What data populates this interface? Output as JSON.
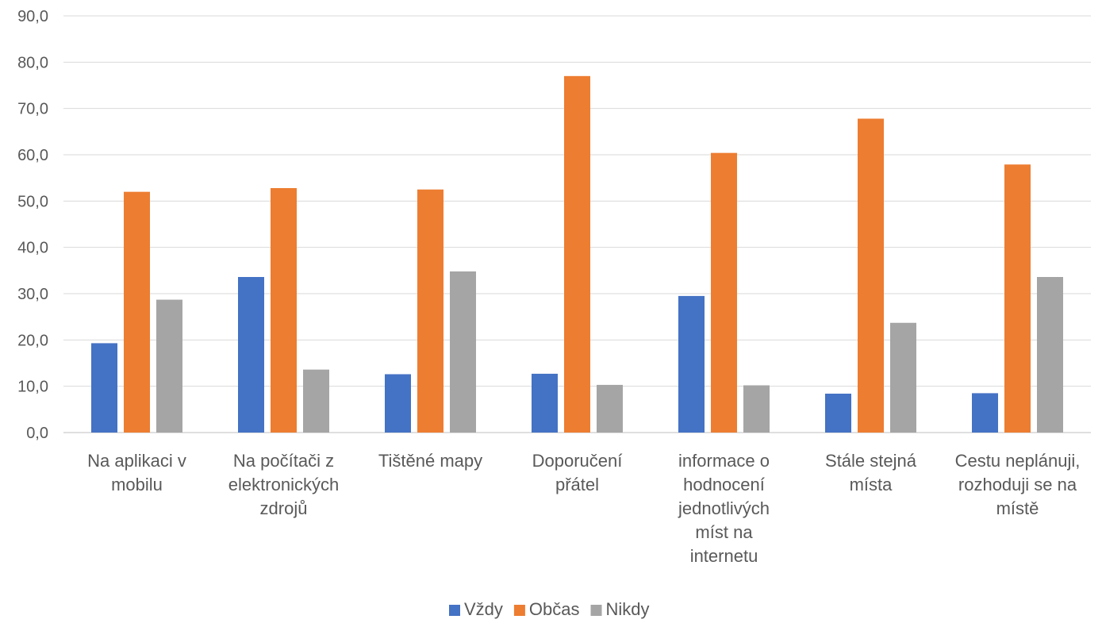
{
  "chart_data": {
    "type": "bar",
    "title": "",
    "xlabel": "",
    "ylabel": "",
    "ylim": [
      0,
      90
    ],
    "yticks": [
      "0,0",
      "10,0",
      "20,0",
      "30,0",
      "40,0",
      "50,0",
      "60,0",
      "70,0",
      "80,0",
      "90,0"
    ],
    "grid": true,
    "legend_position": "bottom",
    "categories": [
      [
        "Na aplikaci v",
        "mobilu"
      ],
      [
        "Na počítači z",
        "elektronických",
        "zdrojů"
      ],
      [
        "Tištěné mapy"
      ],
      [
        "Doporučení",
        "přátel"
      ],
      [
        "informace o",
        "hodnocení",
        "jednotlivých",
        "míst na",
        "internetu"
      ],
      [
        "Stále stejná",
        "místa"
      ],
      [
        "Cestu neplánuji,",
        "rozhoduji se na",
        "místě"
      ]
    ],
    "series": [
      {
        "name": "Vždy",
        "color": "#4472C4",
        "values": [
          19.3,
          33.6,
          12.6,
          12.7,
          29.5,
          8.4,
          8.5
        ]
      },
      {
        "name": "Občas",
        "color": "#ED7D31",
        "values": [
          52.0,
          52.8,
          52.5,
          77.0,
          60.4,
          67.8,
          57.9
        ]
      },
      {
        "name": "Nikdy",
        "color": "#A5A5A5",
        "values": [
          28.7,
          13.6,
          34.8,
          10.3,
          10.2,
          23.7,
          33.6
        ]
      }
    ]
  }
}
